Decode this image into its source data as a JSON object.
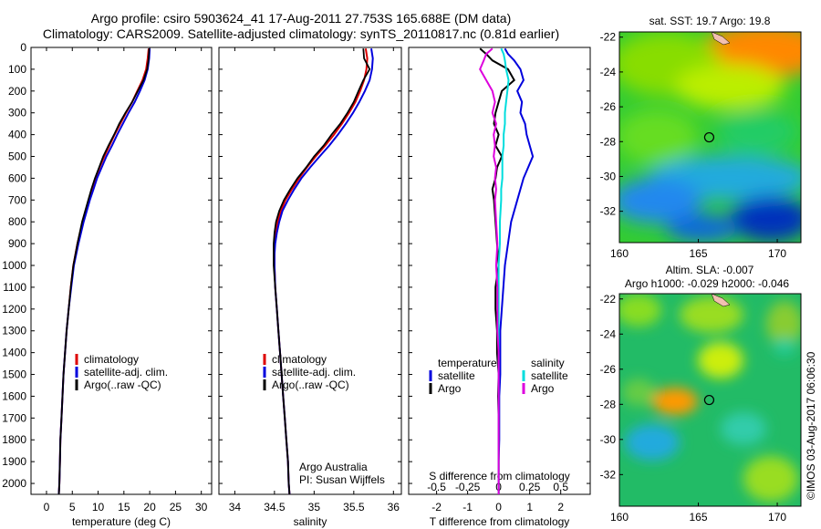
{
  "header": {
    "line1": "Argo profile: csiro 5903624_41 17-Aug-2011 27.753S 165.688E (DM data)",
    "line2": "Climatology: CARS2009. Satellite-adjusted climatology: synTS_20110817.nc (0.81d earlier)"
  },
  "depth_ticks": [
    "0",
    "100",
    "200",
    "300",
    "400",
    "500",
    "600",
    "700",
    "800",
    "900",
    "1000",
    "1100",
    "1200",
    "1300",
    "1400",
    "1500",
    "1600",
    "1700",
    "1800",
    "1900",
    "2000"
  ],
  "chart_data": [
    {
      "type": "line",
      "id": "temperature",
      "xlabel": "temperature (deg C)",
      "xticks": [
        "0",
        "5",
        "10",
        "15",
        "20",
        "25",
        "30"
      ],
      "xlim": [
        -3,
        32
      ],
      "ylim": [
        2050,
        0
      ],
      "legend": [
        "climatology",
        "satellite-adj. clim.",
        "Argo(..raw -QC)"
      ],
      "colors": {
        "climatology": "#dd0000",
        "satellite": "#0000dd",
        "argo": "#000000"
      },
      "depth": [
        5,
        50,
        100,
        150,
        200,
        250,
        300,
        350,
        400,
        450,
        500,
        550,
        600,
        650,
        700,
        750,
        800,
        900,
        1000,
        1100,
        1200,
        1300,
        1400,
        1500,
        1600,
        1700,
        1800,
        1900,
        2000,
        2050
      ],
      "series": [
        {
          "name": "climatology",
          "values": [
            19.8,
            19.6,
            19.3,
            18.6,
            17.6,
            16.6,
            15.4,
            14.3,
            13.2,
            12.2,
            11.2,
            10.3,
            9.5,
            8.8,
            8.2,
            7.6,
            7.0,
            6.0,
            5.2,
            4.7,
            4.3,
            3.9,
            3.6,
            3.3,
            3.1,
            2.9,
            2.7,
            2.6,
            2.5,
            2.4
          ]
        },
        {
          "name": "satellite-adj. clim.",
          "values": [
            20.0,
            19.9,
            19.6,
            19.0,
            18.1,
            17.1,
            15.9,
            14.8,
            13.7,
            12.7,
            11.6,
            10.7,
            9.8,
            9.1,
            8.4,
            7.8,
            7.2,
            6.2,
            5.3,
            4.8,
            4.3,
            3.9,
            3.6,
            3.3,
            3.1,
            2.9,
            2.7,
            2.6,
            2.5,
            2.4
          ]
        },
        {
          "name": "Argo(..raw -QC)",
          "values": [
            19.9,
            19.8,
            19.5,
            18.8,
            17.7,
            16.6,
            15.3,
            14.1,
            13.1,
            12.0,
            11.0,
            10.2,
            9.4,
            8.7,
            8.1,
            7.5,
            6.9,
            6.0,
            5.2,
            4.7,
            4.3,
            3.9,
            3.6,
            3.3,
            3.1,
            2.9,
            2.7,
            2.6,
            2.5,
            2.4
          ]
        }
      ]
    },
    {
      "type": "line",
      "id": "salinity",
      "xlabel": "salinity",
      "xticks": [
        "34",
        "34.5",
        "35",
        "35.5",
        "36"
      ],
      "xlim": [
        33.8,
        36.1
      ],
      "ylim": [
        2050,
        0
      ],
      "legend": [
        "climatology",
        "satellite-adj. clim.",
        "Argo(..raw -QC)"
      ],
      "colors": {
        "climatology": "#dd0000",
        "satellite": "#0000dd",
        "argo": "#000000"
      },
      "annotation": [
        "Argo Australia",
        "PI: Susan Wijffels"
      ],
      "depth": [
        5,
        50,
        100,
        150,
        200,
        250,
        300,
        350,
        400,
        450,
        500,
        550,
        600,
        650,
        700,
        750,
        800,
        850,
        900,
        950,
        1000,
        1100,
        1200,
        1300,
        1400,
        1500,
        1600,
        1700,
        1800,
        1900,
        2000,
        2050
      ],
      "series": [
        {
          "name": "climatology",
          "values": [
            35.65,
            35.67,
            35.66,
            35.63,
            35.58,
            35.52,
            35.44,
            35.35,
            35.25,
            35.14,
            35.02,
            34.91,
            34.81,
            34.72,
            34.64,
            34.58,
            34.54,
            34.51,
            34.5,
            34.5,
            34.5,
            34.51,
            34.53,
            34.55,
            34.57,
            34.59,
            34.61,
            34.63,
            34.65,
            34.67,
            34.68,
            34.69
          ]
        },
        {
          "name": "satellite-adj. clim.",
          "values": [
            35.72,
            35.74,
            35.73,
            35.7,
            35.64,
            35.57,
            35.49,
            35.4,
            35.3,
            35.19,
            35.07,
            34.95,
            34.84,
            34.75,
            34.67,
            34.6,
            34.56,
            34.53,
            34.51,
            34.5,
            34.5,
            34.51,
            34.53,
            34.55,
            34.57,
            34.59,
            34.61,
            34.63,
            34.65,
            34.67,
            34.68,
            34.69
          ]
        },
        {
          "name": "Argo(..raw -QC)",
          "values": [
            35.62,
            35.63,
            35.7,
            35.62,
            35.56,
            35.5,
            35.42,
            35.33,
            35.22,
            35.12,
            35.0,
            34.9,
            34.79,
            34.7,
            34.62,
            34.56,
            34.52,
            34.5,
            34.49,
            34.49,
            34.49,
            34.51,
            34.53,
            34.55,
            34.57,
            34.59,
            34.61,
            34.63,
            34.65,
            34.67,
            34.68,
            34.69
          ]
        }
      ]
    },
    {
      "type": "line",
      "id": "differences",
      "xlabel": "T difference from climatology",
      "xlabel_top": "S difference from climatology",
      "xticks_T": [
        "-2",
        "-1",
        "0",
        "1",
        "2"
      ],
      "xticks_S": [
        "-0.5",
        "-0.25",
        "0",
        "0.25",
        "0.5"
      ],
      "xlim_T": [
        -2.9,
        2.95
      ],
      "ylim": [
        2050,
        0
      ],
      "legend": {
        "temperature_title": "temperature",
        "salinity_title": "salinity",
        "items": [
          "satellite",
          "Argo",
          "satellite",
          "Argo"
        ]
      },
      "colors": {
        "T_satellite": "#0000dd",
        "T_argo": "#000000",
        "S_satellite": "#00dddd",
        "S_argo": "#dd00dd"
      },
      "depth": [
        5,
        30,
        60,
        100,
        150,
        200,
        250,
        300,
        350,
        400,
        450,
        500,
        550,
        600,
        650,
        700,
        800,
        900,
        1000,
        1100,
        1200,
        1300,
        1400,
        1500,
        1600,
        1700,
        1800,
        1900,
        2000,
        2050
      ],
      "series": [
        {
          "name": "T satellite",
          "units": "deg C",
          "values": [
            0.2,
            0.3,
            0.5,
            0.7,
            0.8,
            0.6,
            0.75,
            0.7,
            0.85,
            0.9,
            1.0,
            1.1,
            0.95,
            0.8,
            0.7,
            0.6,
            0.4,
            0.3,
            0.2,
            0.15,
            0.1,
            0.05,
            0.05,
            0.05,
            0.02,
            0.02,
            0.02,
            0.0,
            0.0,
            0.0
          ]
        },
        {
          "name": "T Argo",
          "units": "deg C",
          "values": [
            -0.6,
            -0.4,
            -0.2,
            0.3,
            0.5,
            0.1,
            0.0,
            -0.1,
            -0.15,
            0.0,
            -0.1,
            0.1,
            -0.05,
            -0.1,
            -0.2,
            -0.15,
            -0.1,
            -0.05,
            0.0,
            -0.1,
            -0.1,
            -0.05,
            -0.05,
            0.0,
            -0.02,
            0.0,
            0.0,
            0.0,
            0.0,
            0.0
          ]
        },
        {
          "name": "S satellite",
          "units": "psu",
          "values": [
            0.02,
            0.04,
            0.05,
            0.06,
            0.08,
            0.07,
            0.06,
            0.05,
            0.05,
            0.04,
            0.04,
            0.03,
            0.03,
            0.03,
            0.02,
            0.02,
            0.01,
            0.01,
            0.0,
            0.0,
            0.0,
            0.0,
            0.0,
            0.0,
            0.0,
            0.0,
            0.0,
            0.0,
            0.0,
            0.0
          ]
        },
        {
          "name": "S Argo",
          "units": "psu",
          "values": [
            -0.05,
            -0.1,
            -0.12,
            -0.15,
            -0.1,
            -0.05,
            -0.03,
            -0.05,
            -0.02,
            -0.04,
            -0.03,
            -0.04,
            -0.02,
            -0.03,
            -0.02,
            -0.03,
            -0.02,
            -0.01,
            -0.02,
            -0.01,
            -0.01,
            -0.01,
            0.0,
            0.0,
            0.0,
            0.0,
            0.0,
            0.0,
            0.0,
            0.0
          ]
        }
      ]
    },
    {
      "type": "heatmap",
      "id": "sst_map",
      "title": "sat. SST: 19.7  Argo: 19.8",
      "xticks": [
        "160",
        "165",
        "170"
      ],
      "yticks": [
        "-22",
        "-24",
        "-26",
        "-28",
        "-30",
        "-32"
      ],
      "xlim": [
        160,
        171.5
      ],
      "ylim": [
        -33.8,
        -21.7
      ],
      "profile_location": {
        "lon": 165.688,
        "lat": -27.753
      }
    },
    {
      "type": "heatmap",
      "id": "sla_map",
      "title": "Altim. SLA: -0.007",
      "subtitle": "Argo h1000: -0.029 h2000: -0.046",
      "xticks": [
        "160",
        "165",
        "170"
      ],
      "yticks": [
        "-22",
        "-24",
        "-26",
        "-28",
        "-30",
        "-32"
      ],
      "xlim": [
        160,
        171.5
      ],
      "ylim": [
        -33.8,
        -21.7
      ],
      "profile_location": {
        "lon": 165.688,
        "lat": -27.753
      }
    }
  ],
  "footer": {
    "stamp": "©IMOS 03-Aug-2017 06:06:30"
  }
}
